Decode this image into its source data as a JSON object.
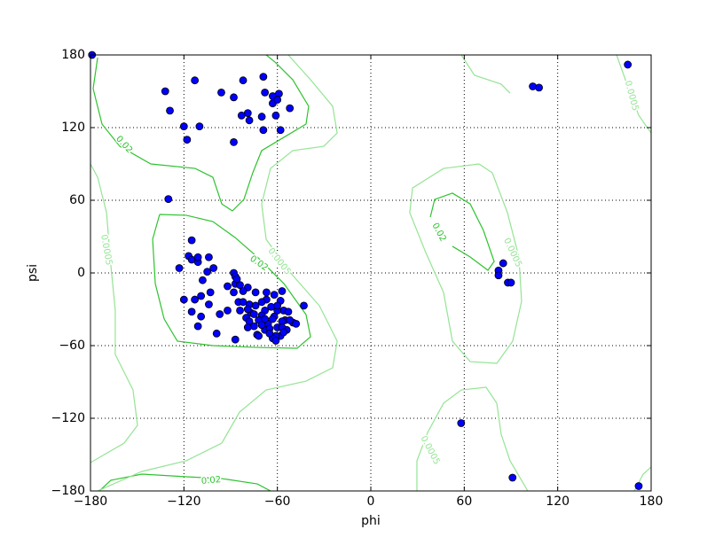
{
  "chart_data": {
    "type": "scatter",
    "x_label": "phi",
    "y_label": "psi",
    "xlim": [
      -180,
      180
    ],
    "ylim": [
      -180,
      180
    ],
    "xticks": [
      {
        "value": -180,
        "label": "−180"
      },
      {
        "value": -120,
        "label": "−120"
      },
      {
        "value": -60,
        "label": "−60"
      },
      0,
      60,
      120,
      180
    ],
    "yticks": [
      {
        "value": -180,
        "label": "−180"
      },
      {
        "value": -120,
        "label": "−120"
      },
      {
        "value": -60,
        "label": "−60"
      },
      0,
      60,
      120,
      180
    ],
    "grid": true,
    "contours": [
      {
        "level": 0.02,
        "color": "#2ec32e",
        "lines": [
          {
            "x": [
              -175.4,
              -178.3,
              -172.6,
              -161.2,
              -141.3,
              -112.8,
              -101.4,
              -95.7,
              -88.9,
              -81.5,
              -75.8,
              -70.1,
              -55.8,
              -41.6,
              -39.9,
              -50.1,
              -61.5,
              -67.2
            ],
            "y": [
              177.8,
              152.2,
              122.9,
              104.6,
              90,
              86.3,
              79,
              57,
              51.2,
              60.7,
              82.7,
              101,
              112,
              122.9,
              137.6,
              159.5,
              174.1,
              180
            ]
          },
          {
            "x": [
              -135.6,
              -140.1,
              -138.4,
              -132.7,
              -124.2,
              -101.4,
              -72.9,
              -47.3,
              -38.7,
              -41.6,
              -55.8,
              -72.9,
              -87.2,
              -101.4,
              -118.5,
              -135.6
            ],
            "y": [
              48.3,
              27.8,
              -8.8,
              -38,
              -56.3,
              -60,
              -61.5,
              -62.2,
              -52.7,
              -34.4,
              -8.8,
              13.2,
              29.3,
              42.4,
              47.6,
              48.3
            ]
          },
          {
            "x": [
              38.2,
              41,
              52.4,
              63.8,
              72.3,
              79.2,
              75.2,
              63.8,
              52.4
            ],
            "y": [
              46.1,
              60.7,
              65.9,
              57,
              35.1,
              9.5,
              2.2,
              13.2,
              22
            ]
          },
          {
            "x": [
              -174.3,
              -166.9,
              -147,
              -118.5,
              -95.7,
              -72.9,
              -64.4
            ],
            "y": [
              -180,
              -171.2,
              -166.1,
              -168.3,
              -169.8,
              -174.2,
              -180
            ]
          }
        ]
      },
      {
        "level": 0.0005,
        "color": "#94e494",
        "lines": [
          {
            "x": [
              -180,
              -175.4,
              -169.7,
              -166.9,
              -164.1,
              -164.1,
              -152.7,
              -149.8,
              -158.4,
              -180
            ],
            "y": [
              90,
              79,
              49.8,
              5.9,
              -30.7,
              -67.3,
              -96.6,
              -125.8,
              -140.5,
              -156.6
            ]
          },
          {
            "x": [
              -53,
              -38.7,
              -24.5,
              -21.6,
              -30.2,
              -50.1,
              -64.4,
              -70.1,
              -67.2,
              -53,
              -33,
              -21.6,
              -24.5,
              -41.6,
              -67.2,
              -84.3,
              -95.7,
              -118.5,
              -147,
              -175.4
            ],
            "y": [
              180,
              159.5,
              137.6,
              115.6,
              104.6,
              101,
              86.3,
              57,
              27.8,
              2.2,
              -27.1,
              -56.3,
              -78.3,
              -89.3,
              -96.6,
              -114.9,
              -140.5,
              -155.1,
              -163.9,
              -180
            ]
          },
          {
            "x": [
              69.5,
              46.7,
              26.8,
              25,
              35.3,
              46.7,
              52.4,
              63.8,
              80.9,
              91.1,
              96.8,
              95.1,
              87.7,
              78,
              69.5
            ],
            "y": [
              90,
              86.3,
              70.2,
              49.8,
              16.8,
              -16.1,
              -56.3,
              -73.2,
              -74.6,
              -56.3,
              -23.4,
              13.2,
              49.8,
              82.7,
              90
            ]
          },
          {
            "x": [
              58.1,
              66.6,
              83.7,
              89.4
            ],
            "y": [
              180,
              163.2,
              155.9,
              148.5
            ]
          },
          {
            "x": [
              29.6,
              29.6,
              36.5,
              46.7,
              58.1,
              74,
              80.9,
              83.7,
              89.4,
              100.8
            ],
            "y": [
              -180,
              -155.1,
              -131.7,
              -107.6,
              -96.6,
              -94.4,
              -107.6,
              -133.2,
              -155.1,
              -180
            ]
          },
          {
            "x": [
              157.8,
              163.5,
              172,
              180
            ],
            "y": [
              180,
              159.5,
              130.2,
              115.6
            ]
          },
          {
            "x": [
              169.2,
              174.9,
              180
            ],
            "y": [
              -180,
              -166.1,
              -160.3
            ]
          }
        ]
      }
    ],
    "series": [
      {
        "color": "#0000ff",
        "x": [
          -179,
          -132,
          -129,
          -113,
          -120,
          -118,
          -110,
          -96,
          -88,
          -82,
          -69,
          -68,
          -79,
          -83,
          -78,
          -70,
          -69,
          -63,
          -63,
          -59,
          -61,
          -60,
          -58,
          -52,
          -88,
          -130,
          104,
          108,
          165,
          91,
          172,
          58,
          85,
          82,
          82,
          88,
          90,
          -115,
          -123,
          -117,
          -115,
          -111,
          -111,
          -104,
          -101,
          -105,
          -108,
          -103,
          -109,
          -120,
          -113,
          -104,
          -115,
          -109,
          -111,
          -97,
          -99,
          -87,
          -92,
          -88,
          -92,
          -88,
          -87,
          -87,
          -84,
          -79,
          -85,
          -84,
          -82,
          -78,
          -74,
          -80,
          -78,
          -75,
          -73,
          -70,
          -68,
          -67,
          -64,
          -62,
          -60,
          -58,
          -56,
          -55,
          -54,
          -61,
          -63,
          -68,
          -70,
          -74,
          -70,
          -67,
          -62,
          -58,
          -53,
          -50,
          -48,
          -43,
          -57,
          -66,
          -65,
          -77,
          -72,
          -68,
          -60,
          -57,
          -57,
          -52,
          -79,
          -75,
          -70,
          -63,
          -60,
          -56,
          -61,
          -65,
          -72,
          -79,
          -82,
          -86
        ],
        "y": [
          180,
          150,
          134,
          159,
          121,
          110,
          121,
          149,
          145,
          159,
          162,
          149,
          132,
          130,
          126,
          129,
          118,
          140,
          146,
          148,
          130,
          143,
          118,
          136,
          108,
          61,
          154,
          153,
          172,
          -169,
          -176,
          -124,
          8,
          2,
          -2,
          -8,
          -8,
          27,
          4,
          14,
          11,
          9,
          13,
          13,
          4,
          1,
          -6,
          -16,
          -19,
          -22,
          -22,
          -26,
          -32,
          -36,
          -44,
          -34,
          -50,
          -55,
          -11,
          -16,
          -31,
          0,
          -3,
          -9,
          -10,
          -12,
          -24,
          -31,
          -15,
          -26,
          -16,
          -37,
          -40,
          -44,
          -51,
          -40,
          -31,
          -22,
          -28,
          -36,
          -45,
          -52,
          -31,
          -39,
          -47,
          -52,
          -54,
          -47,
          -35,
          -27,
          -24,
          -16,
          -18,
          -23,
          -32,
          -41,
          -42,
          -27,
          -15,
          -42,
          -46,
          -33,
          -39,
          -38,
          -31,
          -40,
          -45,
          -39,
          -30,
          -34,
          -43,
          -38,
          -27,
          -49,
          -56,
          -50,
          -52,
          -45,
          -24,
          -5
        ]
      }
    ]
  }
}
